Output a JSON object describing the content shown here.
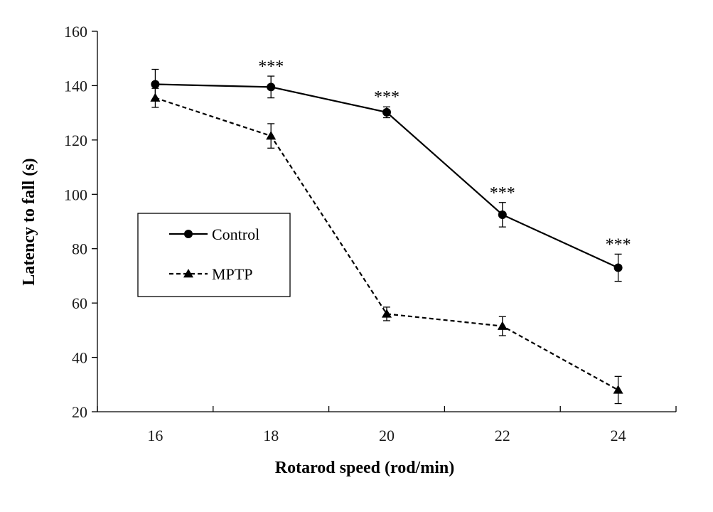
{
  "chart_data": {
    "type": "line",
    "title": "",
    "xlabel": "Rotarod speed (rod/min)",
    "ylabel": "Latency to fall (s)",
    "categories": [
      "16",
      "18",
      "20",
      "22",
      "24"
    ],
    "ylim": [
      20,
      160
    ],
    "yticks": [
      "20",
      "40",
      "60",
      "80",
      "100",
      "120",
      "140",
      "160"
    ],
    "series": [
      {
        "name": "Control",
        "marker": "circle",
        "line_style": "solid",
        "values": [
          140.5,
          139.5,
          130.2,
          92.5,
          73.0
        ],
        "errors": [
          5.5,
          4.0,
          2.0,
          4.5,
          5.0
        ]
      },
      {
        "name": "MPTP",
        "marker": "triangle",
        "line_style": "dashed",
        "values": [
          135.5,
          121.5,
          56.0,
          51.5,
          28.0
        ],
        "errors": [
          3.5,
          4.5,
          2.5,
          3.5,
          5.0
        ]
      }
    ],
    "annotations": [
      {
        "category": "18",
        "text": "***"
      },
      {
        "category": "20",
        "text": "***"
      },
      {
        "category": "22",
        "text": "***"
      },
      {
        "category": "24",
        "text": "***"
      }
    ],
    "legend_position": "middle-left",
    "grid": false,
    "colors": {
      "line": "#000000",
      "axis": "#000000"
    }
  }
}
